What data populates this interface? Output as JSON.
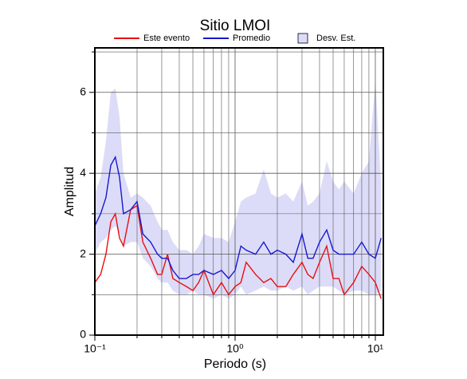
{
  "chart_data": {
    "type": "line",
    "title": "Sitio LMOI",
    "x_label": "Periodo (s)",
    "y_label": "Amplitud",
    "xscale": "log",
    "xlim": [
      0.1,
      11.4
    ],
    "ylim": [
      0,
      7.1
    ],
    "xticks": [
      {
        "value": 0.1,
        "label": "10⁻¹"
      },
      {
        "value": 1,
        "label": "10⁰"
      },
      {
        "value": 10,
        "label": "10¹"
      }
    ],
    "xminor": [
      0.2,
      0.3,
      0.4,
      0.5,
      0.6,
      0.7,
      0.8,
      0.9,
      2,
      3,
      4,
      5,
      6,
      7,
      8,
      9
    ],
    "yticks": [
      0,
      2,
      4,
      6
    ],
    "yminor": [
      1,
      3,
      5,
      7
    ],
    "grid": true,
    "x": [
      0.1,
      0.11,
      0.12,
      0.13,
      0.14,
      0.15,
      0.16,
      0.18,
      0.2,
      0.22,
      0.25,
      0.28,
      0.3,
      0.33,
      0.36,
      0.4,
      0.45,
      0.5,
      0.55,
      0.6,
      0.7,
      0.8,
      0.9,
      1.0,
      1.1,
      1.2,
      1.4,
      1.6,
      1.8,
      2.0,
      2.3,
      2.6,
      3.0,
      3.3,
      3.6,
      4.0,
      4.5,
      5.0,
      5.5,
      6.0,
      7.0,
      8.0,
      9.0,
      10.0,
      11.0
    ],
    "bands": [
      {
        "name": "Desv. Est.",
        "color": "#dcdcf8",
        "upper": [
          3.5,
          3.9,
          4.8,
          6.0,
          6.1,
          5.4,
          4.0,
          3.4,
          3.5,
          3.4,
          3.2,
          2.8,
          2.6,
          2.6,
          2.3,
          2.1,
          2.1,
          2.0,
          2.2,
          2.5,
          2.4,
          2.4,
          2.3,
          2.8,
          3.3,
          3.4,
          3.5,
          4.1,
          3.5,
          3.4,
          3.5,
          3.3,
          3.8,
          3.2,
          3.3,
          3.5,
          4.3,
          3.8,
          3.6,
          3.8,
          3.5,
          4.0,
          4.3,
          6.3,
          3.7
        ],
        "lower": [
          2.0,
          2.3,
          2.4,
          2.6,
          2.7,
          2.5,
          2.2,
          2.3,
          2.3,
          1.9,
          1.7,
          1.4,
          1.3,
          1.3,
          1.1,
          1.0,
          1.0,
          1.1,
          1.0,
          1.0,
          0.9,
          1.0,
          0.9,
          1.0,
          1.2,
          1.0,
          1.1,
          1.2,
          1.1,
          1.1,
          1.2,
          1.1,
          1.2,
          1.0,
          1.1,
          1.2,
          1.2,
          1.2,
          1.1,
          1.0,
          1.1,
          1.1,
          1.0,
          1.0,
          1.1
        ]
      }
    ],
    "series": [
      {
        "name": "Este evento",
        "color": "#e81010",
        "values": [
          1.3,
          1.5,
          2.0,
          2.8,
          3.0,
          2.4,
          2.2,
          3.1,
          3.2,
          2.3,
          1.9,
          1.5,
          1.5,
          2.0,
          1.4,
          1.3,
          1.2,
          1.1,
          1.3,
          1.6,
          1.0,
          1.3,
          1.0,
          1.2,
          1.3,
          1.8,
          1.5,
          1.3,
          1.4,
          1.2,
          1.2,
          1.5,
          1.8,
          1.5,
          1.4,
          1.8,
          2.2,
          1.4,
          1.4,
          1.0,
          1.3,
          1.7,
          1.5,
          1.3,
          0.9
        ]
      },
      {
        "name": "Promedio",
        "color": "#1818d0",
        "values": [
          2.7,
          3.0,
          3.4,
          4.2,
          4.4,
          3.9,
          3.0,
          3.1,
          3.3,
          2.5,
          2.3,
          2.0,
          1.9,
          1.9,
          1.6,
          1.4,
          1.4,
          1.5,
          1.5,
          1.6,
          1.5,
          1.6,
          1.4,
          1.6,
          2.2,
          2.1,
          2.0,
          2.3,
          2.0,
          2.1,
          2.0,
          1.8,
          2.5,
          1.9,
          1.9,
          2.3,
          2.6,
          2.1,
          2.0,
          2.0,
          2.0,
          2.3,
          2.0,
          1.9,
          2.4
        ]
      }
    ]
  }
}
